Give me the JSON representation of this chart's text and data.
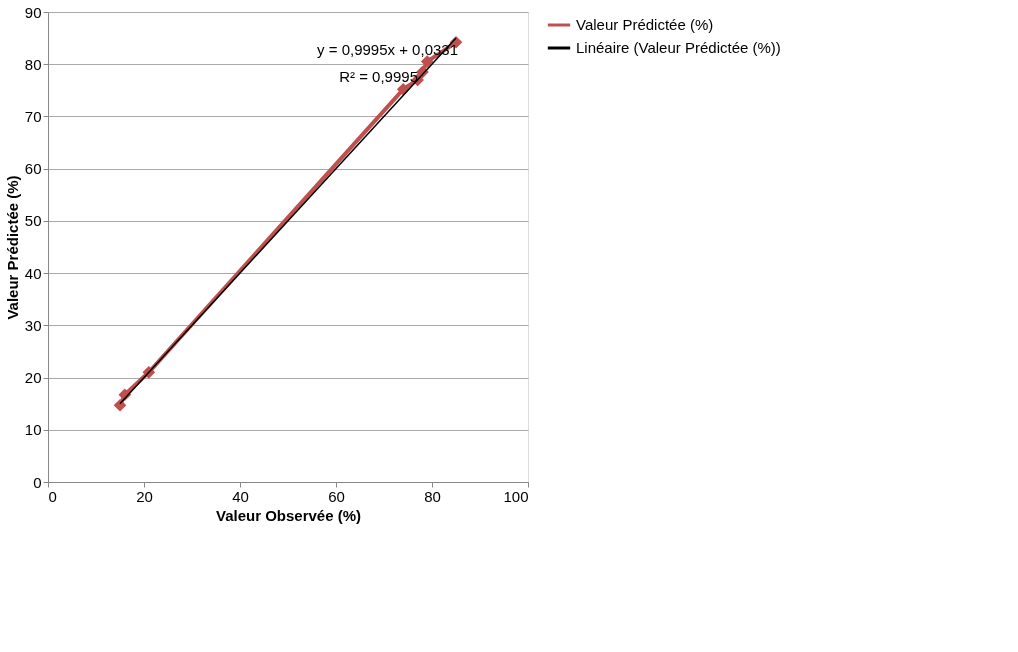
{
  "chart_data": {
    "type": "line",
    "xlabel": "Valeur Observée (%)",
    "ylabel": "Valeur Prédictée (%)",
    "xlim": [
      0,
      100
    ],
    "xticks": [
      0,
      20,
      40,
      60,
      80,
      100
    ],
    "ylim": [
      0,
      90
    ],
    "yticks": [
      0,
      10,
      20,
      30,
      40,
      50,
      60,
      70,
      80,
      90
    ],
    "grid": "y",
    "legend": "right",
    "marker": "diamond",
    "line_style": "solid",
    "series": [
      {
        "name": "Valeur Prédictée (%)",
        "color": "#c0504d",
        "x": [
          15,
          16,
          21,
          74,
          77,
          78,
          79,
          85
        ],
        "values": [
          14.7,
          16.7,
          21.0,
          75.2,
          77.0,
          78.5,
          80.5,
          84.2
        ]
      },
      {
        "name": "Linéaire (Valeur Prédictée (%))",
        "color": "#000000",
        "type": "line",
        "marker": "none",
        "x": [
          15,
          85
        ],
        "values": [
          15.0,
          85.0
        ]
      }
    ],
    "annotations": [
      "y = 0,9995x + 0,0331",
      "R² = 0,9995"
    ]
  }
}
